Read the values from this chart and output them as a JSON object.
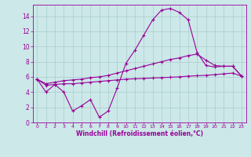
{
  "x": [
    0,
    1,
    2,
    3,
    4,
    5,
    6,
    7,
    8,
    9,
    10,
    11,
    12,
    13,
    14,
    15,
    16,
    17,
    18,
    19,
    20,
    21,
    22,
    23
  ],
  "y_main": [
    5.7,
    4.0,
    5.0,
    4.0,
    1.5,
    2.2,
    3.0,
    0.7,
    1.5,
    4.5,
    7.8,
    9.5,
    11.5,
    13.5,
    14.8,
    15.0,
    14.5,
    13.5,
    9.2,
    7.5,
    7.3,
    7.4,
    7.4,
    6.1
  ],
  "y_upper": [
    5.7,
    5.1,
    5.3,
    5.5,
    5.6,
    5.7,
    5.9,
    6.0,
    6.2,
    6.5,
    6.8,
    7.1,
    7.4,
    7.7,
    8.0,
    8.3,
    8.5,
    8.8,
    9.0,
    8.2,
    7.5,
    7.4,
    7.4,
    6.1
  ],
  "y_lower": [
    5.7,
    4.9,
    5.0,
    5.1,
    5.1,
    5.2,
    5.3,
    5.4,
    5.5,
    5.6,
    5.7,
    5.75,
    5.8,
    5.85,
    5.9,
    5.95,
    6.0,
    6.1,
    6.15,
    6.2,
    6.3,
    6.4,
    6.5,
    6.1
  ],
  "line_color": "#990099",
  "bg_color": "#cce8e8",
  "grid_color": "#aacccc",
  "xlabel": "Windchill (Refroidissement éolien,°C)",
  "xlim": [
    -0.5,
    23.5
  ],
  "ylim": [
    0,
    15.5
  ],
  "xticks": [
    0,
    1,
    2,
    3,
    4,
    5,
    6,
    7,
    8,
    9,
    10,
    11,
    12,
    13,
    14,
    15,
    16,
    17,
    18,
    19,
    20,
    21,
    22,
    23
  ],
  "yticks": [
    0,
    2,
    4,
    6,
    8,
    10,
    12,
    14
  ]
}
